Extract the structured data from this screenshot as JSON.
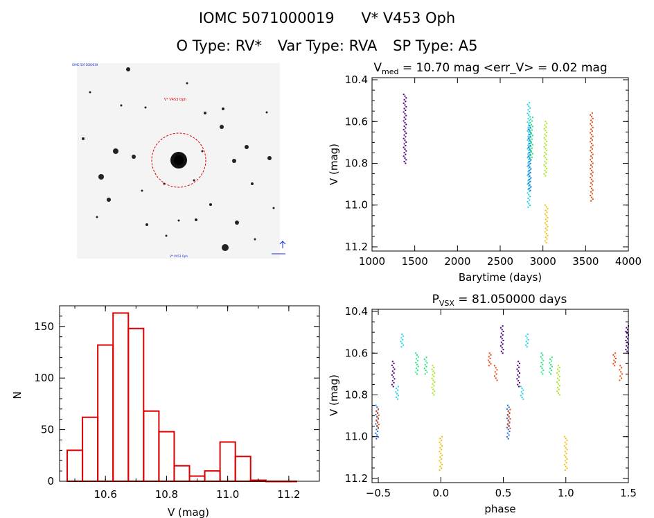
{
  "header": {
    "id": "IOMC 5071000019",
    "name": "V* V453 Oph",
    "otype": "O Type: RV*",
    "vartype": "Var Type: RVA",
    "sptype": "SP Type: A5"
  },
  "finder": {
    "target_label": "V* V453 Oph",
    "corner_tl": "IOMC 5071000019",
    "bottom_center": "V* V453 Oph"
  },
  "colors": {
    "hist": "#dd0000",
    "finder_circle": "#dd0000",
    "palette": [
      "#4b0082",
      "#1e6fd9",
      "#22d3e6",
      "#22e67a",
      "#a8e61e",
      "#f0c010",
      "#e64a10"
    ]
  },
  "chart_data": [
    {
      "id": "lightcurve",
      "type": "scatter",
      "title_pre": "V",
      "title_sub": "med",
      "title_post": " = 10.70 mag <err_V> = 0.02 mag",
      "xlabel": "Barytime (days)",
      "ylabel": "V (mag)",
      "xlim": [
        1000,
        4000
      ],
      "ylim": [
        11.22,
        10.39
      ],
      "xticks": [
        1000,
        1500,
        2000,
        2500,
        3000,
        3500,
        4000
      ],
      "yticks": [
        10.4,
        10.6,
        10.8,
        11.0,
        11.2
      ],
      "series": [
        {
          "x": 1385,
          "ymin": 10.47,
          "ymax": 10.8,
          "color": "#4b0082"
        },
        {
          "x": 2835,
          "ymin": 10.51,
          "ymax": 11.01,
          "color": "#22d3e6"
        },
        {
          "x": 2845,
          "ymin": 10.62,
          "ymax": 10.93,
          "color": "#1e6fd9"
        },
        {
          "x": 2865,
          "ymin": 10.58,
          "ymax": 10.78,
          "color": "#22e67a"
        },
        {
          "x": 3030,
          "ymin": 10.6,
          "ymax": 10.86,
          "color": "#a8e61e"
        },
        {
          "x": 3040,
          "ymin": 11.0,
          "ymax": 11.18,
          "color": "#f0c010"
        },
        {
          "x": 3570,
          "ymin": 10.56,
          "ymax": 10.98,
          "color": "#e64a10"
        }
      ]
    },
    {
      "id": "phased",
      "type": "scatter",
      "title_pre": "P",
      "title_sub": "VSX",
      "title_post": " = 81.050000 days",
      "xlabel": "phase",
      "ylabel": "V (mag)",
      "xlim": [
        -0.55,
        1.5
      ],
      "ylim": [
        11.22,
        10.39
      ],
      "xticks": [
        -0.5,
        0.0,
        0.5,
        1.0,
        1.5
      ],
      "xticklabels": [
        "−0.5",
        "0.0",
        "0.5",
        "1.0",
        "1.5"
      ],
      "yticks": [
        10.4,
        10.6,
        10.8,
        11.0,
        11.2
      ],
      "clusters": [
        {
          "phase": -0.51,
          "ymin": 10.85,
          "ymax": 11.01,
          "color": "#1e6fd9"
        },
        {
          "phase": -0.505,
          "ymin": 10.87,
          "ymax": 10.96,
          "color": "#e64a10"
        },
        {
          "phase": -0.38,
          "ymin": 10.64,
          "ymax": 10.76,
          "color": "#4b0082"
        },
        {
          "phase": -0.35,
          "ymin": 10.76,
          "ymax": 10.82,
          "color": "#22d3e6"
        },
        {
          "phase": -0.31,
          "ymin": 10.51,
          "ymax": 10.57,
          "color": "#22d3e6"
        },
        {
          "phase": -0.19,
          "ymin": 10.6,
          "ymax": 10.7,
          "color": "#22e67a"
        },
        {
          "phase": -0.12,
          "ymin": 10.62,
          "ymax": 10.7,
          "color": "#22e67a"
        },
        {
          "phase": -0.06,
          "ymin": 10.66,
          "ymax": 10.8,
          "color": "#a8e61e"
        },
        {
          "phase": 0.0,
          "ymin": 11.0,
          "ymax": 11.16,
          "color": "#f0c010"
        },
        {
          "phase": 0.39,
          "ymin": 10.6,
          "ymax": 10.66,
          "color": "#e64a10"
        },
        {
          "phase": 0.44,
          "ymin": 10.66,
          "ymax": 10.73,
          "color": "#e64a10"
        },
        {
          "phase": 0.49,
          "ymin": 10.47,
          "ymax": 10.6,
          "color": "#4b0082"
        },
        {
          "phase": 0.54,
          "ymin": 10.85,
          "ymax": 11.01,
          "color": "#1e6fd9"
        },
        {
          "phase": 0.545,
          "ymin": 10.87,
          "ymax": 10.96,
          "color": "#e64a10"
        },
        {
          "phase": 0.62,
          "ymin": 10.64,
          "ymax": 10.76,
          "color": "#4b0082"
        },
        {
          "phase": 0.65,
          "ymin": 10.76,
          "ymax": 10.82,
          "color": "#22d3e6"
        },
        {
          "phase": 0.69,
          "ymin": 10.51,
          "ymax": 10.57,
          "color": "#22d3e6"
        },
        {
          "phase": 0.81,
          "ymin": 10.6,
          "ymax": 10.7,
          "color": "#22e67a"
        },
        {
          "phase": 0.88,
          "ymin": 10.62,
          "ymax": 10.7,
          "color": "#22e67a"
        },
        {
          "phase": 0.94,
          "ymin": 10.66,
          "ymax": 10.8,
          "color": "#a8e61e"
        },
        {
          "phase": 1.0,
          "ymin": 11.0,
          "ymax": 11.16,
          "color": "#f0c010"
        },
        {
          "phase": 1.39,
          "ymin": 10.6,
          "ymax": 10.66,
          "color": "#e64a10"
        },
        {
          "phase": 1.44,
          "ymin": 10.66,
          "ymax": 10.73,
          "color": "#e64a10"
        },
        {
          "phase": 1.49,
          "ymin": 10.47,
          "ymax": 10.6,
          "color": "#4b0082"
        }
      ]
    },
    {
      "id": "histogram",
      "type": "bar",
      "xlabel": "V (mag)",
      "ylabel": "N",
      "xlim": [
        10.45,
        11.3
      ],
      "ylim": [
        0,
        170
      ],
      "xticks": [
        10.6,
        10.8,
        11.0,
        11.2
      ],
      "xticklabels": [
        "10.6",
        "10.8",
        "11.0",
        "11.2"
      ],
      "yticks": [
        0,
        50,
        100,
        150
      ],
      "bin_width": 0.05,
      "bin_starts": [
        10.475,
        10.525,
        10.575,
        10.625,
        10.675,
        10.725,
        10.775,
        10.825,
        10.875,
        10.925,
        10.975,
        11.025,
        11.075,
        11.125,
        11.175
      ],
      "values": [
        30,
        62,
        132,
        163,
        148,
        68,
        48,
        15,
        5,
        10,
        38,
        24,
        1,
        0,
        0
      ]
    }
  ]
}
